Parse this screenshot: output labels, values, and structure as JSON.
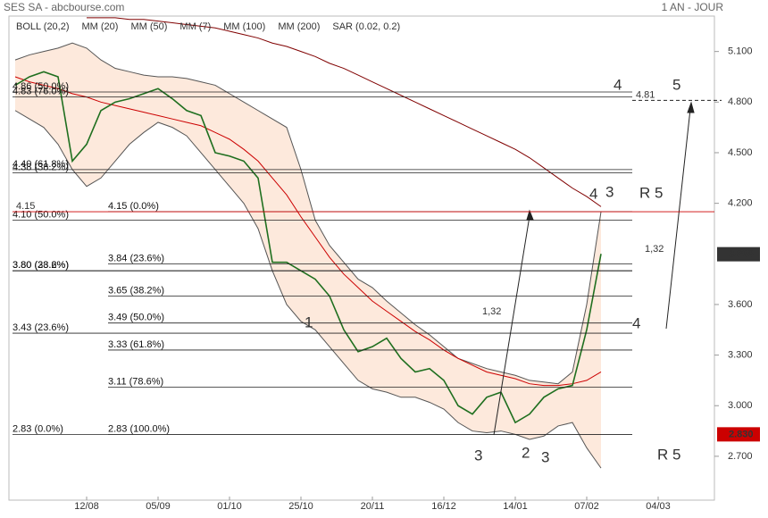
{
  "header": {
    "title": "SES SA - abcbourse.com",
    "period": "1 AN - JOUR"
  },
  "chart_data": {
    "type": "line",
    "indicators": [
      {
        "name": "BOLL (20,2)",
        "color": "#333333"
      },
      {
        "name": "MM (20)",
        "color": "#3355dd"
      },
      {
        "name": "MM (50)",
        "color": "#cc0000"
      },
      {
        "name": "MM (7)",
        "color": "#009900"
      },
      {
        "name": "MM (100)",
        "color": "#ee7700"
      },
      {
        "name": "MM (200)",
        "color": "#800000"
      },
      {
        "name": "SAR (0.02, 0.2)",
        "color": "#cc0000"
      }
    ],
    "categories": [
      null,
      null,
      null,
      null,
      null,
      "12/08",
      null,
      null,
      null,
      null,
      "05/09",
      null,
      null,
      null,
      null,
      "01/10",
      null,
      null,
      null,
      null,
      "25/10",
      null,
      null,
      null,
      null,
      "20/11",
      null,
      null,
      null,
      null,
      "16/12",
      null,
      null,
      null,
      null,
      "14/01",
      null,
      null,
      null,
      null,
      "07/02",
      null,
      null,
      null,
      null,
      "04/03"
    ],
    "series": [
      {
        "name": "BOLL (20,2)",
        "color": "#555555",
        "band": "upper",
        "values": [
          5.05,
          5.08,
          5.1,
          5.12,
          5.15,
          5.12,
          5.05,
          5.0,
          4.98,
          4.96,
          4.95,
          4.95,
          4.94,
          4.92,
          4.9,
          4.85,
          4.8,
          4.75,
          4.7,
          4.65,
          4.4,
          4.1,
          3.95,
          3.85,
          3.75,
          3.7,
          3.62,
          3.55,
          3.48,
          3.42,
          3.35,
          3.28,
          3.25,
          3.22,
          3.2,
          3.18,
          3.15,
          3.14,
          3.13,
          3.2,
          3.6,
          4.15,
          null,
          null,
          null,
          null
        ]
      },
      {
        "name": "BOLL (20,2)",
        "color": "#555555",
        "band": "lower",
        "values": [
          4.75,
          4.7,
          4.65,
          4.55,
          4.4,
          4.3,
          4.35,
          4.45,
          4.55,
          4.62,
          4.68,
          4.65,
          4.6,
          4.5,
          4.4,
          4.3,
          4.2,
          4.05,
          3.8,
          3.6,
          3.5,
          3.45,
          3.35,
          3.25,
          3.15,
          3.1,
          3.08,
          3.05,
          3.05,
          3.02,
          2.98,
          2.9,
          2.85,
          2.84,
          2.85,
          2.83,
          2.8,
          2.82,
          2.88,
          2.9,
          2.75,
          2.63,
          null,
          null,
          null,
          null
        ]
      },
      {
        "name": "MM (200)",
        "color": "#800000",
        "values": [
          null,
          null,
          null,
          null,
          null,
          5.3,
          5.3,
          5.3,
          5.29,
          5.29,
          5.28,
          5.27,
          5.26,
          5.25,
          5.24,
          5.22,
          5.2,
          5.18,
          5.15,
          5.13,
          5.1,
          5.07,
          5.03,
          5.0,
          4.96,
          4.92,
          4.88,
          4.84,
          4.8,
          4.76,
          4.72,
          4.68,
          4.64,
          4.6,
          4.56,
          4.52,
          4.47,
          4.41,
          4.35,
          4.29,
          4.24,
          4.18,
          null,
          null,
          null,
          null
        ]
      },
      {
        "name": "MM (50)",
        "color": "#cc0000",
        "values": [
          4.95,
          4.92,
          4.9,
          4.88,
          4.85,
          4.83,
          4.8,
          4.78,
          4.76,
          4.74,
          4.72,
          4.7,
          4.68,
          4.66,
          4.62,
          4.58,
          4.52,
          4.45,
          4.35,
          4.25,
          4.12,
          4.0,
          3.88,
          3.78,
          3.7,
          3.62,
          3.56,
          3.5,
          3.44,
          3.39,
          3.33,
          3.28,
          3.24,
          3.2,
          3.18,
          3.16,
          3.13,
          3.12,
          3.12,
          3.13,
          3.15,
          3.2,
          null,
          null,
          null,
          null
        ]
      },
      {
        "name": "SES SA",
        "color": "#1f6f1f",
        "values": [
          4.9,
          4.95,
          4.98,
          4.95,
          4.45,
          4.55,
          4.75,
          4.8,
          4.82,
          4.85,
          4.88,
          4.82,
          4.75,
          4.72,
          4.5,
          4.48,
          4.45,
          4.35,
          3.85,
          3.85,
          3.8,
          3.75,
          3.65,
          3.45,
          3.32,
          3.35,
          3.4,
          3.28,
          3.2,
          3.22,
          3.15,
          3.0,
          2.95,
          3.05,
          3.08,
          2.9,
          2.95,
          3.05,
          3.1,
          3.12,
          3.45,
          3.9,
          null,
          null,
          null,
          null
        ]
      }
    ],
    "ylim": [
      2.44,
      5.31
    ],
    "yticks": [
      {
        "value": 5.1,
        "label": "5.100"
      },
      {
        "value": 4.8,
        "label": "4.800"
      },
      {
        "value": 4.5,
        "label": "4.500"
      },
      {
        "value": 4.2,
        "label": "4.200"
      },
      {
        "value": 3.6,
        "label": "3.600"
      },
      {
        "value": 3.3,
        "label": "3.300"
      },
      {
        "value": 3.0,
        "label": "3.000"
      },
      {
        "value": 2.7,
        "label": "2.700"
      }
    ],
    "price_tags": [
      {
        "value": 3.898,
        "label": "3.898",
        "color": "#333333"
      },
      {
        "value": 2.83,
        "label": "2.830",
        "color": "#cc0000"
      }
    ],
    "fib_left": [
      {
        "value": 4.86,
        "label": "4.86 (50.0%)"
      },
      {
        "value": 4.83,
        "label": "4.83 (76.0%)"
      },
      {
        "value": 4.4,
        "label": "4.40 (61.8%)"
      },
      {
        "value": 4.38,
        "label": "4.38 (38.2%)"
      },
      {
        "value": 4.1,
        "label": "4.10 (50.0%)"
      },
      {
        "value": 3.8,
        "label": "3.80 (38.2%)"
      },
      {
        "value": 3.8,
        "label": "3.80 (23.6%)"
      },
      {
        "value": 3.43,
        "label": "3.43 (23.6%)"
      },
      {
        "value": 2.83,
        "label": "2.83 (0.0%)"
      }
    ],
    "fib_mid": [
      {
        "value": 4.15,
        "label": "4.15 (0.0%)"
      },
      {
        "value": 3.84,
        "label": "3.84 (23.6%)"
      },
      {
        "value": 3.65,
        "label": "3.65 (38.2%)"
      },
      {
        "value": 3.49,
        "label": "3.49 (50.0%)"
      },
      {
        "value": 3.33,
        "label": "3.33 (61.8%)"
      },
      {
        "value": 3.11,
        "label": "3.11 (78.6%)"
      },
      {
        "value": 2.83,
        "label": "2.83 (100.0%)"
      }
    ],
    "red_level": {
      "value": 4.15,
      "label": "4.15"
    },
    "target_level": {
      "value": 4.81,
      "label": "4.81"
    },
    "annotations": [
      "4",
      "5",
      "4",
      "3",
      "R 5",
      "1,32",
      "1",
      "1,32",
      "4",
      "3",
      "2",
      "3",
      "R 5"
    ]
  }
}
